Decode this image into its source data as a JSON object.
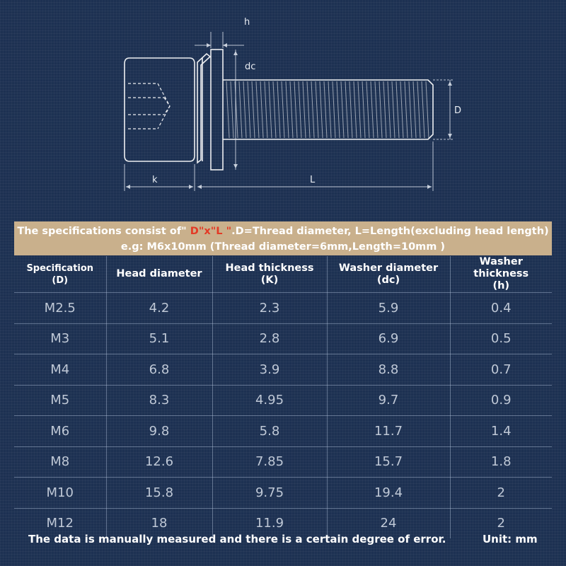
{
  "diagram": {
    "labels": {
      "h": "h",
      "dc": "dc",
      "D": "D",
      "k": "k",
      "L": "L"
    }
  },
  "spec_banner": {
    "line1_before": "The specifications consist of\"",
    "line1_highlight": " D\"x\"L \"",
    "line1_after": ".D=Thread diameter, L=Length(excluding head length)",
    "line2": "e.g: M6x10mm (Thread diameter=6mm,Length=10mm )"
  },
  "table": {
    "headers": [
      {
        "line1": "Specification",
        "line2": "(D)"
      },
      {
        "line1": "Head diameter",
        "line2": ""
      },
      {
        "line1": "Head thickness",
        "line2": "(K)"
      },
      {
        "line1": "Washer diameter",
        "line2": "(dc)"
      },
      {
        "line1": "Washer thickness",
        "line2": "(h)"
      }
    ],
    "rows": [
      [
        "M2.5",
        "4.2",
        "2.3",
        "5.9",
        "0.4"
      ],
      [
        "M3",
        "5.1",
        "2.8",
        "6.9",
        "0.5"
      ],
      [
        "M4",
        "6.8",
        "3.9",
        "8.8",
        "0.7"
      ],
      [
        "M5",
        "8.3",
        "4.95",
        "9.7",
        "0.9"
      ],
      [
        "M6",
        "9.8",
        "5.8",
        "11.7",
        "1.4"
      ],
      [
        "M8",
        "12.6",
        "7.85",
        "15.7",
        "1.8"
      ],
      [
        "M10",
        "15.8",
        "9.75",
        "19.4",
        "2"
      ],
      [
        "M12",
        "18",
        "11.9",
        "24",
        "2"
      ]
    ]
  },
  "footer": {
    "note": "The data is manually measured and there is a certain degree of error.",
    "unit": "Unit: mm"
  }
}
